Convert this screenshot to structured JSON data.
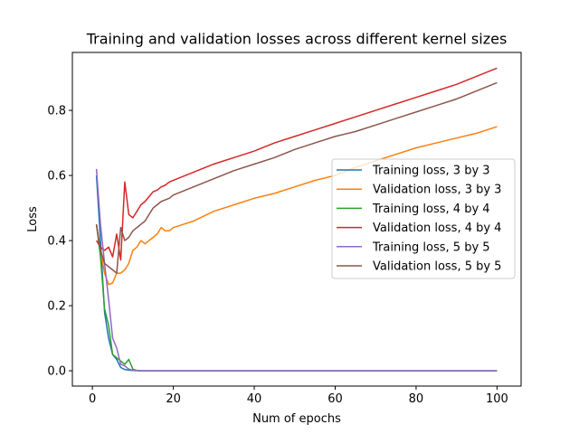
{
  "chart_data": {
    "type": "line",
    "title": "Training and validation losses across different kernel sizes",
    "xlabel": "Num of epochs",
    "ylabel": "Loss",
    "xlim": [
      -4.95,
      105.95
    ],
    "ylim": [
      -0.047,
      0.978
    ],
    "xticks": [
      0,
      20,
      40,
      60,
      80,
      100
    ],
    "yticks": [
      0.0,
      0.2,
      0.4,
      0.6,
      0.8
    ],
    "xtick_labels": [
      "0",
      "20",
      "40",
      "60",
      "80",
      "100"
    ],
    "ytick_labels": [
      "0.0",
      "0.2",
      "0.4",
      "0.6",
      "0.8"
    ],
    "grid": false,
    "legend_position": "center-right",
    "series": [
      {
        "name": "Training loss, 3 by 3",
        "color": "#1f77b4",
        "points": [
          [
            1,
            0.6
          ],
          [
            2,
            0.4
          ],
          [
            3,
            0.18
          ],
          [
            4,
            0.1
          ],
          [
            5,
            0.05
          ],
          [
            6,
            0.035
          ],
          [
            7,
            0.01
          ],
          [
            8,
            0.004
          ],
          [
            9,
            0.002
          ],
          [
            10,
            0.001
          ],
          [
            12,
            0.0
          ],
          [
            20,
            0.0
          ],
          [
            40,
            0.0
          ],
          [
            60,
            0.0
          ],
          [
            80,
            0.0
          ],
          [
            100,
            0.0
          ]
        ]
      },
      {
        "name": "Validation loss, 3 by 3",
        "color": "#ff7f0e",
        "points": [
          [
            1,
            0.45
          ],
          [
            2,
            0.37
          ],
          [
            3,
            0.3
          ],
          [
            4,
            0.265
          ],
          [
            5,
            0.27
          ],
          [
            6,
            0.3
          ],
          [
            7,
            0.3
          ],
          [
            8,
            0.31
          ],
          [
            9,
            0.33
          ],
          [
            10,
            0.37
          ],
          [
            11,
            0.38
          ],
          [
            12,
            0.4
          ],
          [
            13,
            0.39
          ],
          [
            14,
            0.4
          ],
          [
            15,
            0.41
          ],
          [
            16,
            0.42
          ],
          [
            17,
            0.44
          ],
          [
            18,
            0.43
          ],
          [
            19,
            0.43
          ],
          [
            20,
            0.44
          ],
          [
            25,
            0.46
          ],
          [
            30,
            0.49
          ],
          [
            35,
            0.51
          ],
          [
            40,
            0.53
          ],
          [
            45,
            0.545
          ],
          [
            50,
            0.565
          ],
          [
            55,
            0.585
          ],
          [
            60,
            0.6
          ],
          [
            65,
            0.625
          ],
          [
            70,
            0.645
          ],
          [
            75,
            0.665
          ],
          [
            80,
            0.685
          ],
          [
            85,
            0.7
          ],
          [
            90,
            0.715
          ],
          [
            95,
            0.73
          ],
          [
            100,
            0.75
          ]
        ]
      },
      {
        "name": "Training loss, 4 by 4",
        "color": "#2ca02c",
        "points": [
          [
            1,
            0.45
          ],
          [
            2,
            0.35
          ],
          [
            3,
            0.19
          ],
          [
            4,
            0.14
          ],
          [
            5,
            0.05
          ],
          [
            6,
            0.04
          ],
          [
            7,
            0.03
          ],
          [
            8,
            0.02
          ],
          [
            9,
            0.035
          ],
          [
            10,
            0.005
          ],
          [
            11,
            0.001
          ],
          [
            12,
            0.0
          ],
          [
            20,
            0.0
          ],
          [
            40,
            0.0
          ],
          [
            60,
            0.0
          ],
          [
            80,
            0.0
          ],
          [
            100,
            0.0
          ]
        ]
      },
      {
        "name": "Validation loss, 4 by 4",
        "color": "#d62728",
        "points": [
          [
            1,
            0.4
          ],
          [
            2,
            0.38
          ],
          [
            3,
            0.37
          ],
          [
            4,
            0.38
          ],
          [
            5,
            0.35
          ],
          [
            6,
            0.42
          ],
          [
            7,
            0.34
          ],
          [
            8,
            0.58
          ],
          [
            9,
            0.48
          ],
          [
            10,
            0.47
          ],
          [
            11,
            0.49
          ],
          [
            12,
            0.51
          ],
          [
            13,
            0.52
          ],
          [
            14,
            0.535
          ],
          [
            15,
            0.55
          ],
          [
            16,
            0.555
          ],
          [
            17,
            0.565
          ],
          [
            18,
            0.57
          ],
          [
            19,
            0.58
          ],
          [
            20,
            0.585
          ],
          [
            25,
            0.61
          ],
          [
            30,
            0.635
          ],
          [
            35,
            0.655
          ],
          [
            40,
            0.675
          ],
          [
            45,
            0.7
          ],
          [
            50,
            0.72
          ],
          [
            55,
            0.74
          ],
          [
            60,
            0.76
          ],
          [
            65,
            0.78
          ],
          [
            70,
            0.8
          ],
          [
            75,
            0.82
          ],
          [
            80,
            0.84
          ],
          [
            85,
            0.86
          ],
          [
            90,
            0.88
          ],
          [
            95,
            0.905
          ],
          [
            100,
            0.93
          ]
        ]
      },
      {
        "name": "Training loss, 5 by 5",
        "color": "#9467bd",
        "points": [
          [
            1,
            0.62
          ],
          [
            2,
            0.45
          ],
          [
            3,
            0.33
          ],
          [
            4,
            0.22
          ],
          [
            5,
            0.1
          ],
          [
            6,
            0.07
          ],
          [
            7,
            0.02
          ],
          [
            8,
            0.015
          ],
          [
            9,
            0.005
          ],
          [
            10,
            0.002
          ],
          [
            12,
            0.0
          ],
          [
            20,
            0.0
          ],
          [
            40,
            0.0
          ],
          [
            60,
            0.0
          ],
          [
            80,
            0.0
          ],
          [
            100,
            0.0
          ]
        ]
      },
      {
        "name": "Validation loss, 5 by 5",
        "color": "#8c564b",
        "points": [
          [
            1,
            0.45
          ],
          [
            2,
            0.37
          ],
          [
            3,
            0.33
          ],
          [
            4,
            0.32
          ],
          [
            5,
            0.31
          ],
          [
            6,
            0.3
          ],
          [
            7,
            0.44
          ],
          [
            8,
            0.4
          ],
          [
            9,
            0.41
          ],
          [
            10,
            0.43
          ],
          [
            11,
            0.44
          ],
          [
            12,
            0.45
          ],
          [
            13,
            0.46
          ],
          [
            14,
            0.48
          ],
          [
            15,
            0.5
          ],
          [
            16,
            0.51
          ],
          [
            17,
            0.52
          ],
          [
            18,
            0.525
          ],
          [
            19,
            0.53
          ],
          [
            20,
            0.54
          ],
          [
            25,
            0.565
          ],
          [
            30,
            0.59
          ],
          [
            35,
            0.615
          ],
          [
            40,
            0.635
          ],
          [
            45,
            0.655
          ],
          [
            50,
            0.68
          ],
          [
            55,
            0.7
          ],
          [
            60,
            0.72
          ],
          [
            65,
            0.735
          ],
          [
            70,
            0.755
          ],
          [
            75,
            0.775
          ],
          [
            80,
            0.795
          ],
          [
            85,
            0.815
          ],
          [
            90,
            0.835
          ],
          [
            95,
            0.86
          ],
          [
            100,
            0.885
          ]
        ]
      }
    ]
  }
}
